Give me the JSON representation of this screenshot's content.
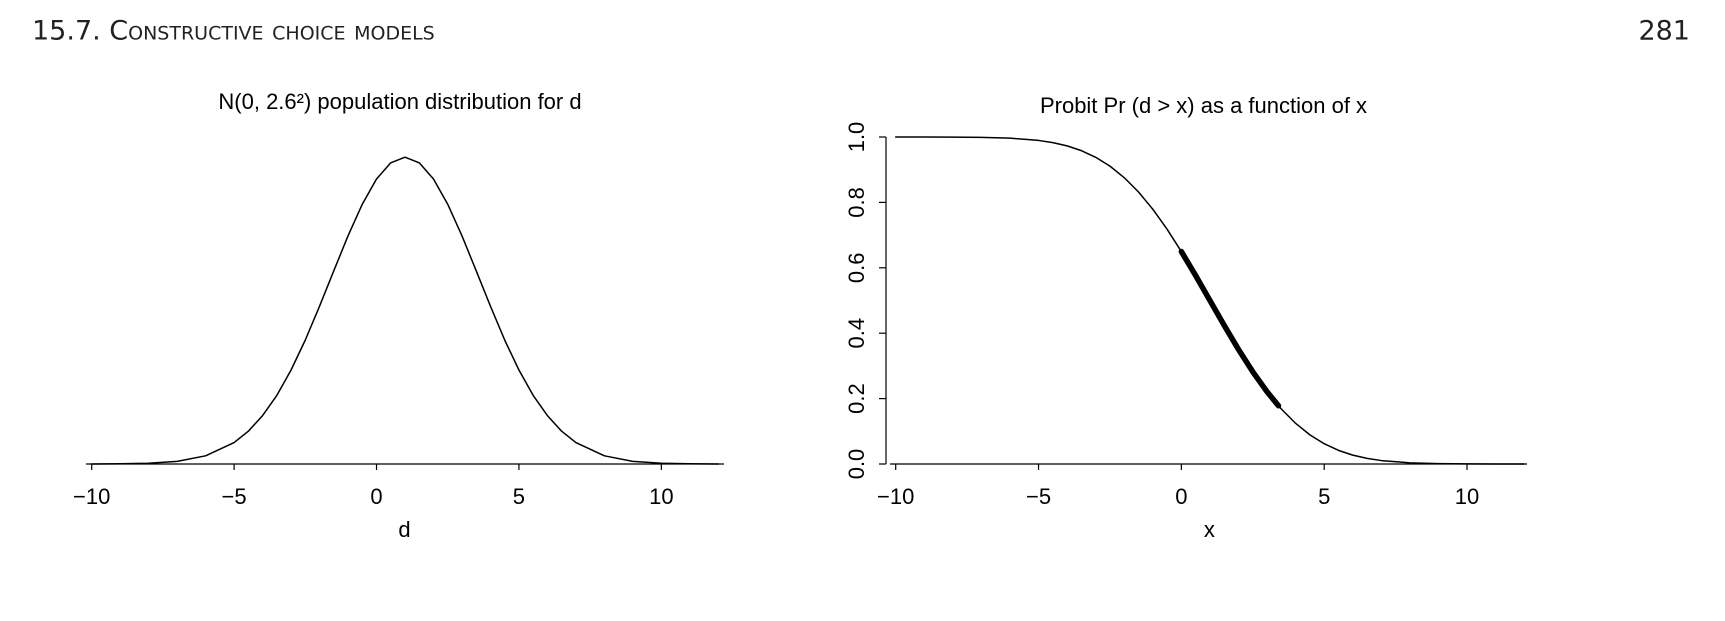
{
  "header": {
    "section": "15.7. Constructive choice models",
    "page": "281"
  },
  "chart_data": [
    {
      "type": "line",
      "title": "N(0, 2.6²) population distribution for d",
      "xlabel": "d",
      "x": [
        -10,
        -9,
        -8,
        -7,
        -6,
        -5,
        -4.5,
        -4,
        -3.5,
        -3,
        -2.5,
        -2,
        -1.5,
        -1,
        -0.5,
        0,
        0.5,
        1,
        1.5,
        2,
        2.5,
        3,
        3.5,
        4,
        4.5,
        5,
        5.5,
        6,
        6.5,
        7,
        8,
        9,
        10,
        11,
        12
      ],
      "series": [
        {
          "color": "#000000",
          "linewidth": 1.5,
          "values": [
            2e-05,
            0.0001,
            0.0004,
            0.0013,
            0.0041,
            0.0107,
            0.0164,
            0.0242,
            0.0343,
            0.047,
            0.062,
            0.0789,
            0.0966,
            0.1141,
            0.1299,
            0.1425,
            0.1506,
            0.1534,
            0.1506,
            0.1425,
            0.1299,
            0.1141,
            0.0966,
            0.0789,
            0.062,
            0.047,
            0.0343,
            0.0242,
            0.0164,
            0.0107,
            0.0041,
            0.0013,
            0.0004,
            0.0001,
            2e-05
          ]
        }
      ],
      "xlim": [
        -10.2,
        12.2
      ],
      "ylim": [
        0,
        0.16
      ],
      "xticks": [
        {
          "value": -10,
          "label": "−10"
        },
        {
          "value": -5,
          "label": "−5"
        },
        0,
        5,
        10
      ]
    },
    {
      "type": "line",
      "title": "Probit Pr (d > x) as a function of x",
      "xlabel": "x",
      "x": [
        -10,
        -9,
        -8,
        -7,
        -6,
        -5,
        -4.5,
        -4,
        -3.5,
        -3,
        -2.5,
        -2,
        -1.5,
        -1,
        -0.5,
        0,
        0.5,
        1,
        1.5,
        2,
        2.5,
        3,
        3.4,
        3.5,
        4,
        4.5,
        5,
        5.5,
        6,
        6.5,
        7,
        8,
        9,
        10,
        11,
        12
      ],
      "series": [
        {
          "color": "#000000",
          "linewidth": 1.5,
          "values": [
            1.0,
            0.9999,
            0.9997,
            0.999,
            0.9964,
            0.9895,
            0.9828,
            0.9728,
            0.9583,
            0.938,
            0.9109,
            0.8757,
            0.8319,
            0.7791,
            0.718,
            0.6497,
            0.5762,
            0.5,
            0.4238,
            0.3503,
            0.282,
            0.2209,
            0.178,
            0.1681,
            0.1243,
            0.0891,
            0.062,
            0.0417,
            0.0272,
            0.0172,
            0.0105,
            0.0036,
            0.001,
            0.0003,
            0.0001,
            0.0
          ]
        },
        {
          "color": "#000000",
          "linewidth": 5.5,
          "values": [
            null,
            null,
            null,
            null,
            null,
            null,
            null,
            null,
            null,
            null,
            null,
            null,
            null,
            null,
            null,
            0.6497,
            0.5762,
            0.5,
            0.4238,
            0.3503,
            0.282,
            0.2209,
            0.178,
            null,
            null,
            null,
            null,
            null,
            null,
            null,
            null,
            null,
            null,
            null,
            null,
            null
          ]
        }
      ],
      "xlim": [
        -10.2,
        12.1
      ],
      "ylim": [
        0,
        1
      ],
      "xticks": [
        {
          "value": -10,
          "label": "−10"
        },
        {
          "value": -5,
          "label": "−5"
        },
        0,
        5,
        10
      ],
      "yticks": [
        {
          "value": 0,
          "label": "0.0"
        },
        0.2,
        0.4,
        0.6,
        0.8,
        {
          "value": 1,
          "label": "1.0"
        }
      ]
    }
  ]
}
